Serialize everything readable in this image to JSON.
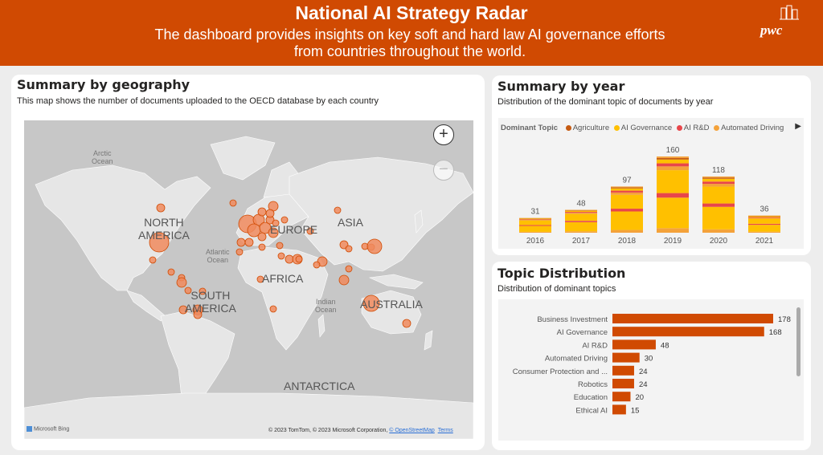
{
  "header": {
    "title": "National AI Strategy Radar",
    "subtitle": "The dashboard provides insights on key soft and hard law AI governance efforts from countries throughout the world.",
    "logo_text": "pwc"
  },
  "colors": {
    "brand": "#d04a02",
    "accent_yellow": "#ffc000",
    "accent_red": "#e8464a",
    "agri": "#c55a11"
  },
  "geography": {
    "title": "Summary by geography",
    "subtitle": "This map shows the number of documents uploaded to the OECD database by each country",
    "zoom_in": "+",
    "zoom_out": "−",
    "labels": {
      "north_america": "NORTH\nAMERICA",
      "south_america": "SOUTH\nAMERICA",
      "europe": "EUROPE",
      "asia": "ASIA",
      "africa": "AFRICA",
      "australia": "AUSTRALIA",
      "antarctica": "ANTARCTICA",
      "arctic": "Arctic\nOcean",
      "atlantic": "Atlantic\nOcean",
      "indian": "Indian\nOcean"
    },
    "bing": "Microsoft Bing",
    "copyright": "© 2023 TomTom, © 2023 Microsoft Corporation,",
    "osm": "© OpenStreetMap",
    "terms": "Terms"
  },
  "year": {
    "title": "Summary by year",
    "subtitle": "Distribution of the dominant topic of documents by year",
    "legend_title": "Dominant Topic",
    "legend": [
      {
        "name": "Agriculture",
        "color": "#c55a11"
      },
      {
        "name": "AI Governance",
        "color": "#ffc000"
      },
      {
        "name": "AI R&D",
        "color": "#e8464a"
      },
      {
        "name": "Automated Driving",
        "color": "#f4a23a"
      }
    ]
  },
  "topics": {
    "title": "Topic Distribution",
    "subtitle": "Distribution of dominant topics"
  },
  "chart_data": [
    {
      "type": "bar",
      "stacked": true,
      "categories": [
        "2016",
        "2017",
        "2018",
        "2019",
        "2020",
        "2021"
      ],
      "totals": [
        31,
        48,
        97,
        160,
        118,
        36
      ],
      "legend_position": "top"
    },
    {
      "type": "bar",
      "orientation": "horizontal",
      "categories": [
        "Business Investment",
        "AI Governance",
        "AI R&D",
        "Automated Driving",
        "Consumer Protection and ...",
        "Robotics",
        "Education",
        "Ethical AI"
      ],
      "values": [
        178,
        168,
        48,
        30,
        24,
        24,
        20,
        15
      ],
      "color": "#d04a02"
    }
  ]
}
